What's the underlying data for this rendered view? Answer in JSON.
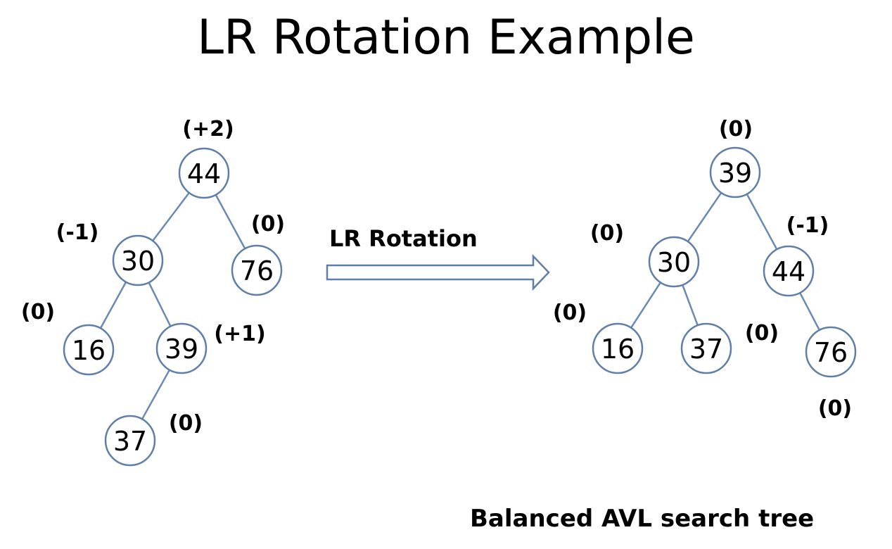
{
  "title": "LR Rotation Example",
  "arrow_label": "LR Rotation",
  "caption": "Balanced AVL search tree",
  "colors": {
    "node_stroke": "#5f7fa8",
    "edge": "#6a8ab4",
    "text": "#000000"
  },
  "before_tree": {
    "nodes": [
      {
        "id": "b44",
        "value": "44",
        "balance": "(+2)"
      },
      {
        "id": "b30",
        "value": "30",
        "balance": "(-1)"
      },
      {
        "id": "b76",
        "value": "76",
        "balance": "(0)"
      },
      {
        "id": "b16",
        "value": "16",
        "balance": "(0)"
      },
      {
        "id": "b39",
        "value": "39",
        "balance": "(+1)"
      },
      {
        "id": "b37",
        "value": "37",
        "balance": "(0)"
      }
    ],
    "edges": [
      [
        "b44",
        "b30"
      ],
      [
        "b44",
        "b76"
      ],
      [
        "b30",
        "b16"
      ],
      [
        "b30",
        "b39"
      ],
      [
        "b39",
        "b37"
      ]
    ]
  },
  "after_tree": {
    "nodes": [
      {
        "id": "a39",
        "value": "39",
        "balance": "(0)"
      },
      {
        "id": "a30",
        "value": "30",
        "balance": "(0)"
      },
      {
        "id": "a44",
        "value": "44",
        "balance": "(-1)"
      },
      {
        "id": "a16",
        "value": "16",
        "balance": "(0)"
      },
      {
        "id": "a37",
        "value": "37",
        "balance": "(0)"
      },
      {
        "id": "a76",
        "value": "76",
        "balance": "(0)"
      }
    ],
    "edges": [
      [
        "a39",
        "a30"
      ],
      [
        "a39",
        "a44"
      ],
      [
        "a30",
        "a16"
      ],
      [
        "a30",
        "a37"
      ],
      [
        "a44",
        "a76"
      ]
    ]
  }
}
